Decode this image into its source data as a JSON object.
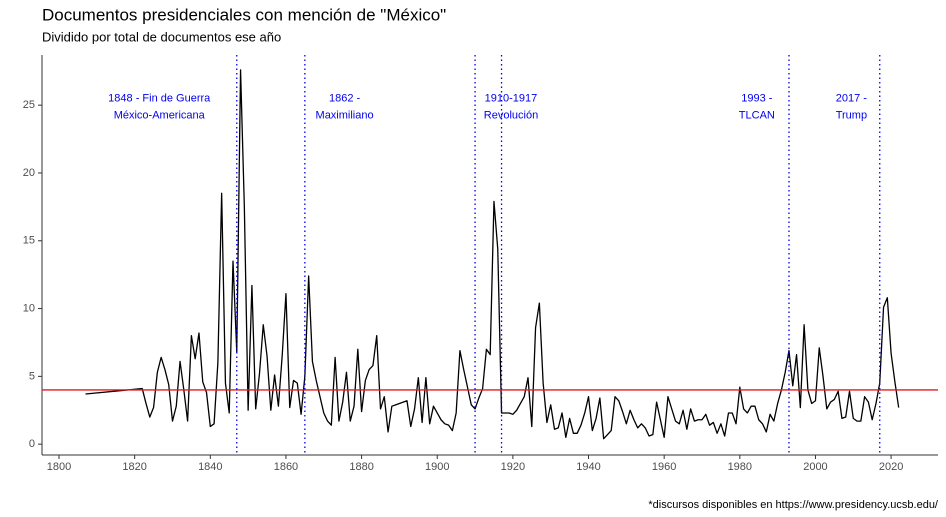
{
  "chart_data": {
    "type": "line",
    "title": "Documentos presidenciales con mención de \"México\"",
    "subtitle": "Dividido por total de documentos ese año",
    "caption": "*discursos disponibles en https://www.presidency.ucsb.edu/",
    "x": [
      1807,
      1822,
      1823,
      1824,
      1825,
      1826,
      1827,
      1828,
      1829,
      1830,
      1831,
      1832,
      1833,
      1834,
      1835,
      1836,
      1837,
      1838,
      1839,
      1840,
      1841,
      1842,
      1843,
      1844,
      1845,
      1846,
      1847,
      1848,
      1849,
      1850,
      1851,
      1852,
      1853,
      1854,
      1855,
      1856,
      1857,
      1858,
      1859,
      1860,
      1861,
      1862,
      1863,
      1864,
      1865,
      1866,
      1867,
      1868,
      1869,
      1870,
      1871,
      1872,
      1873,
      1874,
      1875,
      1876,
      1877,
      1878,
      1879,
      1880,
      1881,
      1882,
      1883,
      1884,
      1885,
      1886,
      1887,
      1888,
      1889,
      1890,
      1891,
      1892,
      1893,
      1894,
      1895,
      1896,
      1897,
      1898,
      1899,
      1900,
      1901,
      1902,
      1903,
      1904,
      1905,
      1906,
      1907,
      1908,
      1909,
      1910,
      1911,
      1912,
      1913,
      1914,
      1915,
      1916,
      1917,
      1918,
      1919,
      1920,
      1921,
      1922,
      1923,
      1924,
      1925,
      1926,
      1927,
      1928,
      1929,
      1930,
      1931,
      1932,
      1933,
      1934,
      1935,
      1936,
      1937,
      1938,
      1939,
      1940,
      1941,
      1942,
      1943,
      1944,
      1945,
      1946,
      1947,
      1948,
      1949,
      1950,
      1951,
      1952,
      1953,
      1954,
      1955,
      1956,
      1957,
      1958,
      1959,
      1960,
      1961,
      1962,
      1963,
      1964,
      1965,
      1966,
      1967,
      1968,
      1969,
      1970,
      1971,
      1972,
      1973,
      1974,
      1975,
      1976,
      1977,
      1978,
      1979,
      1980,
      1981,
      1982,
      1983,
      1984,
      1985,
      1986,
      1987,
      1988,
      1989,
      1990,
      1991,
      1992,
      1993,
      1994,
      1995,
      1996,
      1997,
      1998,
      1999,
      2000,
      2001,
      2002,
      2003,
      2004,
      2005,
      2006,
      2007,
      2008,
      2009,
      2010,
      2011,
      2012,
      2013,
      2014,
      2015,
      2016,
      2017,
      2018,
      2019,
      2020,
      2021,
      2022
    ],
    "series": [
      {
        "color": "#000000",
        "values": [
          3.7,
          4.1,
          3.0,
          2.0,
          2.7,
          5.3,
          6.4,
          5.5,
          4.4,
          1.7,
          2.8,
          6.1,
          4.0,
          1.7,
          8.0,
          6.3,
          8.2,
          4.6,
          3.8,
          1.3,
          1.5,
          6.0,
          18.5,
          4.5,
          2.3,
          13.5,
          6.8,
          27.6,
          17.5,
          2.5,
          11.7,
          2.6,
          5.2,
          8.8,
          6.5,
          2.5,
          5.1,
          2.8,
          6.5,
          11.1,
          2.7,
          4.7,
          4.5,
          2.2,
          5.0,
          12.4,
          6.1,
          4.7,
          3.5,
          2.3,
          1.7,
          1.4,
          6.4,
          1.7,
          3.1,
          5.3,
          1.7,
          2.8,
          7.0,
          2.4,
          4.7,
          5.5,
          5.8,
          8.0,
          2.6,
          3.5,
          0.9,
          2.8,
          2.9,
          3.0,
          3.1,
          3.2,
          1.3,
          2.6,
          4.9,
          1.6,
          4.9,
          1.5,
          2.8,
          2.3,
          1.8,
          1.5,
          1.4,
          1.0,
          2.3,
          6.9,
          5.5,
          4.2,
          2.9,
          2.6,
          3.4,
          4.1,
          7.0,
          6.6,
          17.9,
          14.4,
          2.3,
          2.3,
          2.3,
          2.2,
          2.5,
          3.0,
          3.5,
          4.9,
          1.3,
          8.6,
          10.4,
          4.5,
          1.6,
          2.9,
          1.1,
          1.2,
          2.3,
          0.5,
          1.9,
          0.8,
          0.8,
          1.4,
          2.3,
          3.5,
          1.0,
          1.9,
          3.4,
          0.4,
          0.7,
          1.0,
          3.5,
          3.2,
          2.4,
          1.5,
          2.5,
          1.8,
          1.2,
          1.5,
          1.2,
          0.6,
          0.7,
          3.1,
          1.8,
          0.5,
          3.5,
          2.6,
          1.7,
          1.5,
          2.5,
          1.1,
          2.6,
          1.7,
          1.8,
          1.8,
          2.2,
          1.4,
          1.6,
          0.8,
          1.5,
          0.6,
          2.3,
          2.3,
          1.5,
          4.2,
          2.6,
          2.3,
          2.8,
          2.8,
          1.8,
          1.5,
          0.9,
          2.2,
          1.7,
          3.0,
          4.0,
          5.3,
          6.9,
          4.3,
          6.6,
          2.7,
          8.8,
          4.0,
          3.0,
          3.2,
          7.1,
          5.0,
          2.6,
          3.1,
          3.3,
          3.9,
          1.9,
          2.0,
          3.9,
          1.9,
          1.7,
          1.7,
          3.5,
          3.1,
          1.8,
          3.0,
          4.5,
          10.1,
          10.8,
          6.7,
          4.6,
          2.7
        ]
      }
    ],
    "hline": {
      "y": 4.0,
      "color": "#e31a1c"
    },
    "vlines": {
      "color": "#0000ee",
      "x": [
        1847,
        1865,
        1910,
        1917,
        1993,
        2017
      ]
    },
    "annotations": [
      {
        "x": 1826.5,
        "y": 25.5,
        "color": "#0000ee",
        "lines": [
          "1848 - Fin de Guerra",
          "México-Americana"
        ]
      },
      {
        "x": 1875.5,
        "y": 25.5,
        "color": "#0000ee",
        "lines": [
          "1862 -",
          "Maximiliano"
        ]
      },
      {
        "x": 1919.5,
        "y": 25.5,
        "color": "#0000ee",
        "lines": [
          "1910-1917",
          "Revolución"
        ]
      },
      {
        "x": 1984.5,
        "y": 25.5,
        "color": "#0000ee",
        "lines": [
          "1993 -",
          "TLCAN"
        ]
      },
      {
        "x": 2009.5,
        "y": 25.5,
        "color": "#0000ee",
        "lines": [
          "2017 -",
          "Trump"
        ]
      }
    ],
    "xlim": [
      1795.5,
      2032.4
    ],
    "ylim": [
      -0.8,
      28.7
    ],
    "xticks": [
      1800,
      1820,
      1840,
      1860,
      1880,
      1900,
      1920,
      1940,
      1960,
      1980,
      2000,
      2020
    ],
    "yticks": [
      0,
      5,
      10,
      15,
      20,
      25
    ],
    "grid": false
  }
}
